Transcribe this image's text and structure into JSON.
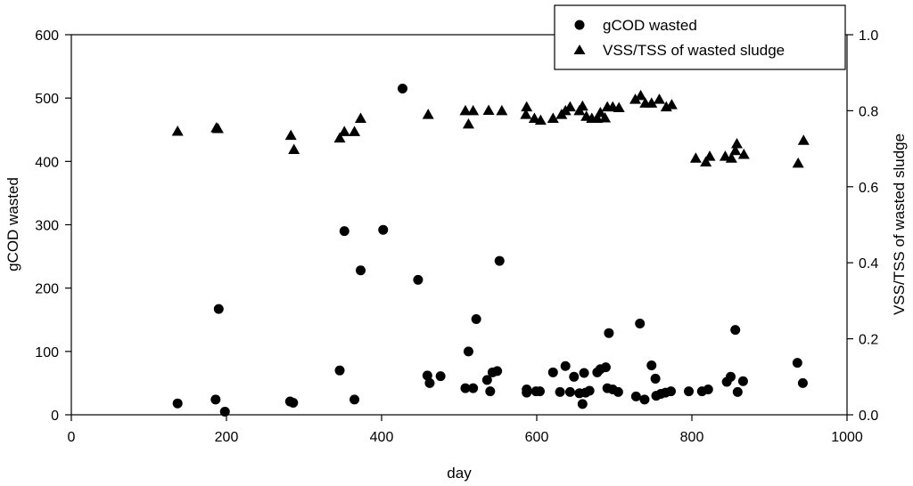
{
  "chart_data": {
    "type": "scatter",
    "xlabel": "day",
    "ylabel": "gCOD wasted",
    "y2label": "VSS/TSS of wasted sludge",
    "xlim": [
      0,
      1000
    ],
    "ylim": [
      0,
      600
    ],
    "y2lim": [
      0,
      1.0
    ],
    "xticks": [
      "0",
      "200",
      "400",
      "600",
      "800",
      "1000"
    ],
    "yticks": [
      "0",
      "100",
      "200",
      "300",
      "400",
      "500",
      "600"
    ],
    "y2ticks": [
      "0.0",
      "0.2",
      "0.4",
      "0.6",
      "0.8",
      "1.0"
    ],
    "grid": false,
    "legend_position": "top-right",
    "series": [
      {
        "name": "gCOD wasted",
        "axis": "left",
        "marker": "circle",
        "color": "#000000",
        "x": [
          137,
          186,
          190,
          198,
          282,
          286,
          346,
          352,
          365,
          373,
          402,
          427,
          447,
          459,
          462,
          476,
          508,
          512,
          518,
          522,
          536,
          540,
          543,
          549,
          552,
          587,
          587,
          599,
          604,
          621,
          630,
          637,
          643,
          648,
          655,
          659,
          661,
          663,
          668,
          678,
          682,
          689,
          691,
          693,
          698,
          705,
          728,
          733,
          739,
          748,
          753,
          754,
          760,
          766,
          773,
          796,
          813,
          821,
          845,
          850,
          856,
          859,
          866,
          936,
          943
        ],
        "y": [
          18,
          24,
          167,
          5,
          21,
          19,
          70,
          290,
          24,
          228,
          292,
          515,
          213,
          62,
          50,
          61,
          42,
          100,
          42,
          151,
          55,
          37,
          67,
          69,
          243,
          40,
          35,
          37,
          37,
          67,
          36,
          77,
          36,
          60,
          34,
          17,
          66,
          35,
          38,
          67,
          72,
          75,
          42,
          129,
          40,
          36,
          29,
          144,
          24,
          78,
          57,
          30,
          33,
          35,
          37,
          37,
          37,
          40,
          52,
          60,
          134,
          36,
          53,
          82,
          50
        ]
      },
      {
        "name": "VSS/TSS of wasted sludge",
        "axis": "right",
        "marker": "triangle",
        "color": "#000000",
        "x": [
          137,
          187,
          189,
          283,
          287,
          346,
          352,
          365,
          373,
          460,
          508,
          512,
          518,
          538,
          555,
          586,
          587,
          597,
          605,
          621,
          632,
          637,
          643,
          655,
          659,
          664,
          671,
          678,
          682,
          688,
          691,
          698,
          706,
          727,
          734,
          740,
          748,
          758,
          767,
          774,
          805,
          818,
          823,
          843,
          851,
          856,
          858,
          867,
          937,
          944
        ],
        "y": [
          0.746,
          0.755,
          0.753,
          0.735,
          0.698,
          0.728,
          0.745,
          0.745,
          0.78,
          0.79,
          0.8,
          0.765,
          0.8,
          0.801,
          0.8,
          0.79,
          0.81,
          0.78,
          0.775,
          0.78,
          0.79,
          0.8,
          0.81,
          0.8,
          0.812,
          0.785,
          0.78,
          0.78,
          0.795,
          0.781,
          0.81,
          0.81,
          0.808,
          0.83,
          0.84,
          0.82,
          0.82,
          0.83,
          0.81,
          0.816,
          0.675,
          0.665,
          0.68,
          0.68,
          0.675,
          0.695,
          0.713,
          0.685,
          0.662,
          0.722
        ]
      }
    ]
  }
}
